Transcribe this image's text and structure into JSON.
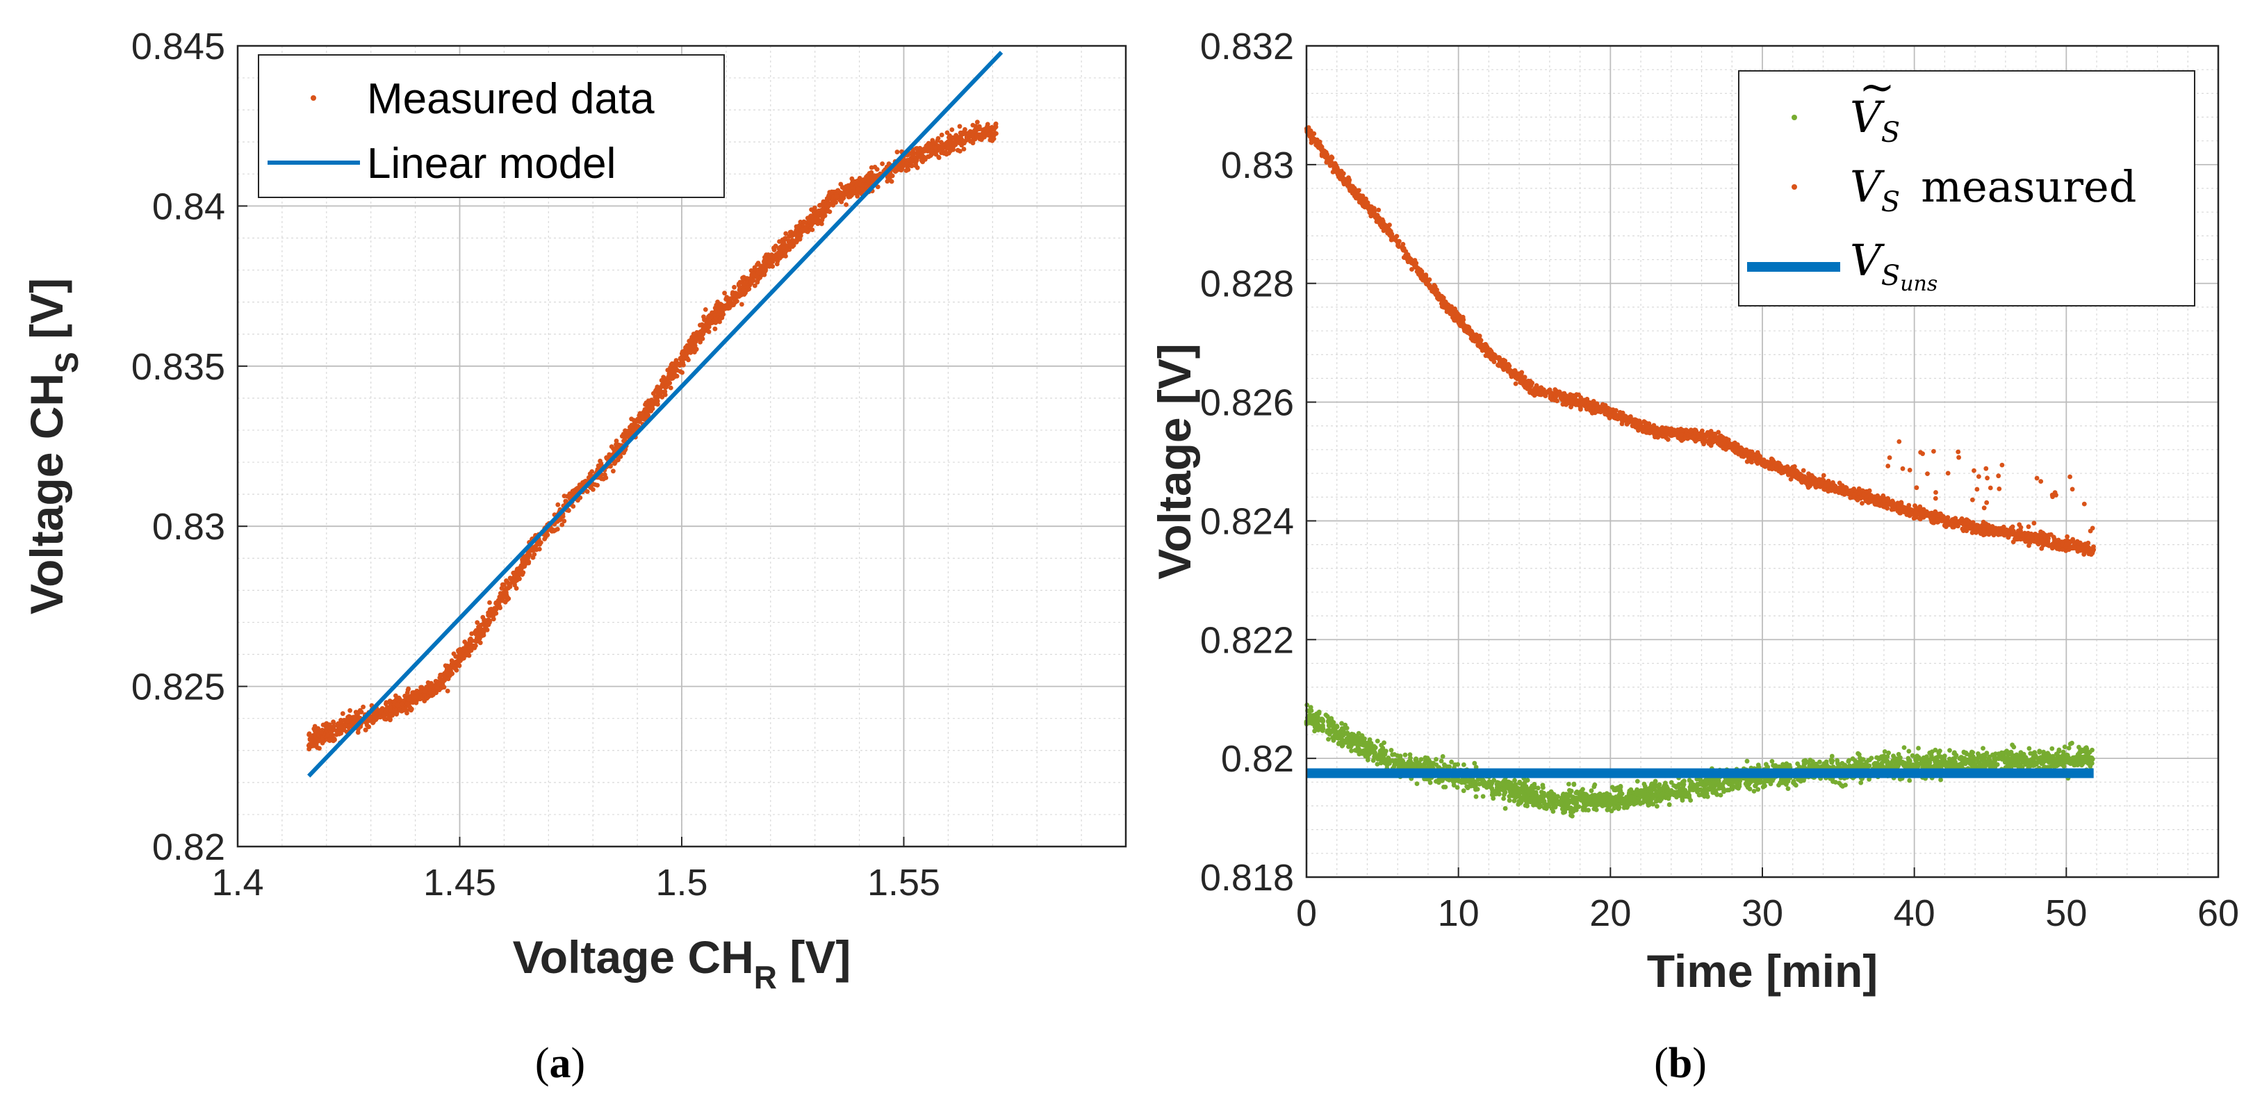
{
  "chart_data": [
    {
      "id": "a",
      "type": "scatter",
      "caption_letter": "a",
      "xlim": [
        1.4,
        1.6
      ],
      "ylim": [
        0.82,
        0.845
      ],
      "xticks": [
        "1.4",
        "1.45",
        "1.5",
        "1.55"
      ],
      "yticks": [
        "0.82",
        "0.825",
        "0.83",
        "0.835",
        "0.84",
        "0.845"
      ],
      "xlabel": {
        "main": "Voltage CH",
        "sub": "R",
        "unit": " [V]"
      },
      "ylabel": {
        "main": "Voltage CH",
        "sub": "S",
        "unit": " [V]"
      },
      "grid": true,
      "legend": {
        "placement": "top-left",
        "entries": [
          "Measured data",
          "Linear model"
        ]
      },
      "series": [
        {
          "name": "Measured data",
          "kind": "scatter",
          "color": "#D95319",
          "trend": [
            [
              1.416,
              0.8233
            ],
            [
              1.425,
              0.8238
            ],
            [
              1.435,
              0.8243
            ],
            [
              1.445,
              0.825
            ],
            [
              1.455,
              0.8268
            ],
            [
              1.465,
              0.829
            ],
            [
              1.475,
              0.8308
            ],
            [
              1.485,
              0.8322
            ],
            [
              1.495,
              0.8342
            ],
            [
              1.505,
              0.8362
            ],
            [
              1.515,
              0.8376
            ],
            [
              1.525,
              0.839
            ],
            [
              1.535,
              0.8403
            ],
            [
              1.545,
              0.841
            ],
            [
              1.555,
              0.8417
            ],
            [
              1.565,
              0.8422
            ],
            [
              1.571,
              0.8424
            ]
          ],
          "spread": 0.0004,
          "count": 2400
        },
        {
          "name": "Linear model",
          "kind": "line",
          "color": "#0072BD",
          "points": [
            [
              1.416,
              0.8222
            ],
            [
              1.572,
              0.8448
            ]
          ]
        }
      ]
    },
    {
      "id": "b",
      "type": "scatter",
      "caption_letter": "b",
      "xlim": [
        0,
        60
      ],
      "ylim": [
        0.818,
        0.832
      ],
      "xticks": [
        "0",
        "10",
        "20",
        "30",
        "40",
        "50",
        "60"
      ],
      "yticks": [
        "0.818",
        "0.82",
        "0.822",
        "0.824",
        "0.826",
        "0.828",
        "0.83",
        "0.832"
      ],
      "xlabel": {
        "main": "Time [min]"
      },
      "ylabel": {
        "main": "Voltage [V]"
      },
      "grid": true,
      "legend": {
        "placement": "top-right",
        "entries": [
          "Ṽ_S",
          "V_S measured",
          "V_S_uns"
        ]
      },
      "legend_labels": {
        "vtilde": {
          "base": "V",
          "sub": "S"
        },
        "measured": {
          "base": "V",
          "sub": "S",
          "text": "measured"
        },
        "uns": {
          "base": "V",
          "sub": "S",
          "subsub": "uns"
        }
      },
      "series": [
        {
          "name": "Ṽ_S",
          "kind": "scatter",
          "color": "#77AC30",
          "trend": [
            [
              0,
              0.8207
            ],
            [
              3,
              0.8203
            ],
            [
              6,
              0.8199
            ],
            [
              10,
              0.8197
            ],
            [
              13,
              0.8195
            ],
            [
              16,
              0.8193
            ],
            [
              20,
              0.8193
            ],
            [
              25,
              0.8195
            ],
            [
              30,
              0.8197
            ],
            [
              40,
              0.8199
            ],
            [
              51.8,
              0.82
            ]
          ],
          "spread": 0.00025,
          "count": 2600
        },
        {
          "name": "V_S measured",
          "kind": "scatter",
          "color": "#D95319",
          "trend": [
            [
              0,
              0.8306
            ],
            [
              2,
              0.8299
            ],
            [
              5,
              0.829
            ],
            [
              8,
              0.828
            ],
            [
              11,
              0.8271
            ],
            [
              13,
              0.8266
            ],
            [
              15,
              0.8262
            ],
            [
              18,
              0.826
            ],
            [
              20,
              0.8258
            ],
            [
              23,
              0.8255
            ],
            [
              27,
              0.8254
            ],
            [
              30,
              0.825
            ],
            [
              33,
              0.8247
            ],
            [
              38,
              0.8243
            ],
            [
              42,
              0.824
            ],
            [
              46,
              0.8238
            ],
            [
              50,
              0.8236
            ],
            [
              51.8,
              0.8235
            ]
          ],
          "spread": 0.00012,
          "count": 2600
        },
        {
          "name": "V_S_uns",
          "kind": "line",
          "color": "#0072BD",
          "points": [
            [
              0,
              0.81975
            ],
            [
              51.8,
              0.81975
            ]
          ]
        }
      ]
    }
  ]
}
